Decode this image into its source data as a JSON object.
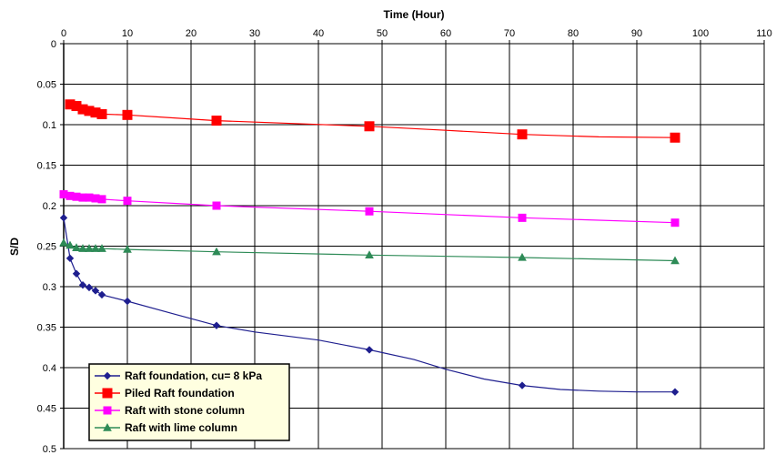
{
  "chart_data": {
    "type": "line",
    "title": "",
    "xlabel": "Time (Hour)",
    "ylabel": "S/D",
    "xlim": [
      0,
      110
    ],
    "ylim": [
      0,
      0.5
    ],
    "y_inverted": true,
    "x_axis_position": "top",
    "grid": true,
    "legend_position": "bottom-left",
    "xticks": [
      0,
      10,
      20,
      30,
      40,
      50,
      60,
      70,
      80,
      90,
      100,
      110
    ],
    "yticks": [
      0,
      0.05,
      0.1,
      0.15,
      0.2,
      0.25,
      0.3,
      0.35,
      0.4,
      0.45,
      0.5
    ],
    "xtick_labels": [
      "0",
      "10",
      "20",
      "30",
      "40",
      "50",
      "60",
      "70",
      "80",
      "90",
      "100",
      "110"
    ],
    "ytick_labels": [
      "0",
      "0.05",
      "0.1",
      "0.15",
      "0.2",
      "0.25",
      "0.3",
      "0.35",
      "0.4",
      "0.45",
      "0.5"
    ],
    "series": [
      {
        "name": "Raft foundation, cu= 8 kPa",
        "color": "#1f1f8f",
        "marker": "diamond",
        "x": [
          0,
          1,
          2,
          3,
          4,
          5,
          6,
          10,
          24,
          48,
          72,
          96
        ],
        "y": [
          0.215,
          0.265,
          0.284,
          0.298,
          0.301,
          0.305,
          0.31,
          0.318,
          0.348,
          0.378,
          0.422,
          0.43
        ],
        "curve": [
          [
            0,
            0.215
          ],
          [
            1,
            0.265
          ],
          [
            2,
            0.284
          ],
          [
            3,
            0.298
          ],
          [
            4,
            0.301
          ],
          [
            5,
            0.305
          ],
          [
            6,
            0.31
          ],
          [
            10,
            0.318
          ],
          [
            17,
            0.333
          ],
          [
            24,
            0.348
          ],
          [
            30,
            0.356
          ],
          [
            40,
            0.366
          ],
          [
            48,
            0.378
          ],
          [
            55,
            0.39
          ],
          [
            60,
            0.402
          ],
          [
            66,
            0.414
          ],
          [
            72,
            0.422
          ],
          [
            78,
            0.427
          ],
          [
            84,
            0.429
          ],
          [
            90,
            0.43
          ],
          [
            96,
            0.43
          ]
        ]
      },
      {
        "name": "Piled Raft foundation",
        "color": "#ff0000",
        "marker": "square",
        "x": [
          1,
          2,
          3,
          4,
          5,
          6,
          10,
          24,
          48,
          72,
          96
        ],
        "y": [
          0.075,
          0.077,
          0.081,
          0.083,
          0.085,
          0.087,
          0.088,
          0.095,
          0.102,
          0.112,
          0.116
        ],
        "curve": [
          [
            1,
            0.075
          ],
          [
            2,
            0.077
          ],
          [
            3,
            0.081
          ],
          [
            4,
            0.083
          ],
          [
            5,
            0.085
          ],
          [
            6,
            0.087
          ],
          [
            10,
            0.088
          ],
          [
            24,
            0.095
          ],
          [
            48,
            0.102
          ],
          [
            60,
            0.107
          ],
          [
            72,
            0.112
          ],
          [
            84,
            0.115
          ],
          [
            96,
            0.116
          ]
        ]
      },
      {
        "name": "Raft with stone column",
        "color": "#ff00ff",
        "marker": "square",
        "x": [
          0,
          1,
          2,
          3,
          4,
          5,
          6,
          10,
          24,
          48,
          72,
          96
        ],
        "y": [
          0.186,
          0.188,
          0.189,
          0.19,
          0.19,
          0.191,
          0.192,
          0.194,
          0.2,
          0.207,
          0.215,
          0.221
        ],
        "curve": [
          [
            0,
            0.186
          ],
          [
            1,
            0.188
          ],
          [
            2,
            0.189
          ],
          [
            3,
            0.19
          ],
          [
            4,
            0.19
          ],
          [
            5,
            0.191
          ],
          [
            6,
            0.192
          ],
          [
            10,
            0.194
          ],
          [
            24,
            0.2
          ],
          [
            48,
            0.207
          ],
          [
            72,
            0.215
          ],
          [
            96,
            0.221
          ]
        ]
      },
      {
        "name": "Raft with lime column",
        "color": "#2e8b57",
        "marker": "triangle",
        "x": [
          0,
          1,
          2,
          3,
          4,
          5,
          6,
          10,
          24,
          48,
          72,
          96
        ],
        "y": [
          0.246,
          0.249,
          0.252,
          0.253,
          0.253,
          0.253,
          0.253,
          0.254,
          0.257,
          0.261,
          0.264,
          0.268
        ],
        "curve": [
          [
            0,
            0.246
          ],
          [
            1,
            0.249
          ],
          [
            2,
            0.252
          ],
          [
            3,
            0.253
          ],
          [
            4,
            0.253
          ],
          [
            5,
            0.253
          ],
          [
            6,
            0.253
          ],
          [
            10,
            0.254
          ],
          [
            24,
            0.257
          ],
          [
            48,
            0.261
          ],
          [
            72,
            0.264
          ],
          [
            96,
            0.268
          ]
        ]
      }
    ]
  }
}
